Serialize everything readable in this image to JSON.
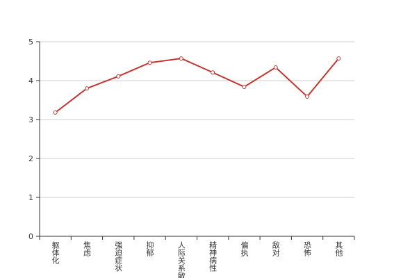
{
  "chart_data": {
    "type": "line",
    "categories": [
      "躯体化",
      "焦虑",
      "强迫症状",
      "抑郁",
      "人际关系敏感",
      "精神病性",
      "偏执",
      "敌对",
      "恐怖",
      "其他"
    ],
    "series": [
      {
        "color": "#c23531",
        "values": [
          3.18,
          3.8,
          4.11,
          4.46,
          4.57,
          4.21,
          3.84,
          4.34,
          3.59,
          4.57
        ]
      }
    ],
    "ylim": [
      0,
      5
    ],
    "yticks": [
      0,
      1,
      2,
      3,
      4,
      5
    ],
    "grid": true
  }
}
